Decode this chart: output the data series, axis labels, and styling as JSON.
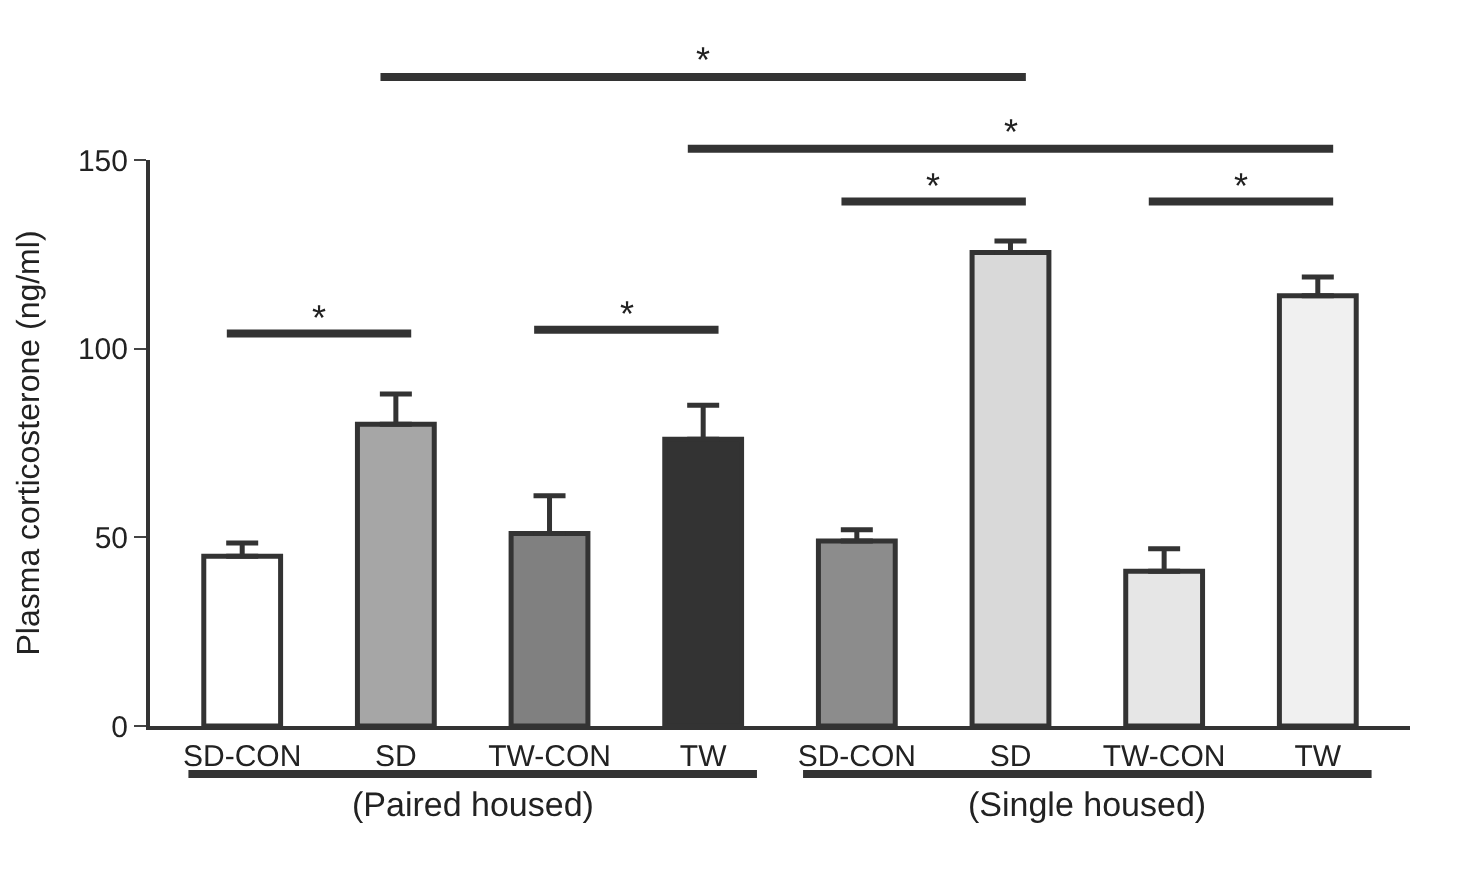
{
  "chart_data": {
    "type": "bar",
    "ylabel": "Plasma corticosterone (ng/ml)",
    "categories": [
      "SD-CON",
      "SD",
      "TW-CON",
      "TW",
      "SD-CON",
      "SD",
      "TW-CON",
      "TW"
    ],
    "values": [
      45,
      80,
      51,
      76,
      49,
      125.5,
      41,
      114
    ],
    "errors": [
      3.5,
      8,
      10,
      9,
      3,
      3,
      6,
      5
    ],
    "colors": [
      "#ffffff",
      "#a6a6a6",
      "#808080",
      "#333333",
      "#8c8c8c",
      "#d9d9d9",
      "#e6e6e6",
      "#f0f0f0"
    ],
    "ylim": [
      0,
      150
    ],
    "yticks": [
      0,
      50,
      100,
      150
    ],
    "annotations": [
      "*",
      "*",
      "*",
      "*",
      "*",
      "*",
      "(Paired housed)",
      "(Single housed)"
    ]
  }
}
